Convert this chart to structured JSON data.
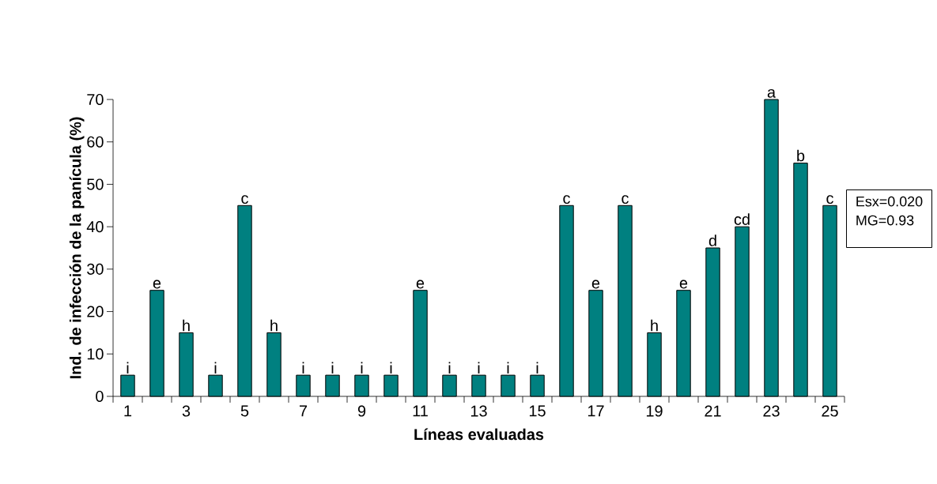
{
  "chart_data": {
    "type": "bar",
    "xlabel": "Líneas evaluadas",
    "ylabel": "Ind. de infección de la panícula (%)",
    "categories": [
      "1",
      null,
      "3",
      null,
      "5",
      null,
      "7",
      null,
      "9",
      null,
      "11",
      null,
      "13",
      null,
      "15",
      null,
      "17",
      null,
      "19",
      null,
      "21",
      null,
      "23",
      null,
      "25"
    ],
    "values": [
      5,
      25,
      15,
      5,
      45,
      15,
      5,
      5,
      5,
      5,
      25,
      5,
      5,
      5,
      5,
      45,
      25,
      45,
      15,
      25,
      35,
      40,
      70,
      55,
      45
    ],
    "value_labels": [
      "i",
      "e",
      "h",
      "i",
      "c",
      "h",
      "i",
      "i",
      "i",
      "i",
      "e",
      "i",
      "i",
      "i",
      "i",
      "c",
      "e",
      "c",
      "h",
      "e",
      "d",
      "cd",
      "a",
      "b",
      "c"
    ],
    "color": "#008080",
    "ylim": [
      0,
      70
    ],
    "yticks": [
      0,
      10,
      20,
      30,
      40,
      50,
      60,
      70
    ],
    "annotations": [
      "Esx=0.020",
      "MG=0.93"
    ]
  }
}
